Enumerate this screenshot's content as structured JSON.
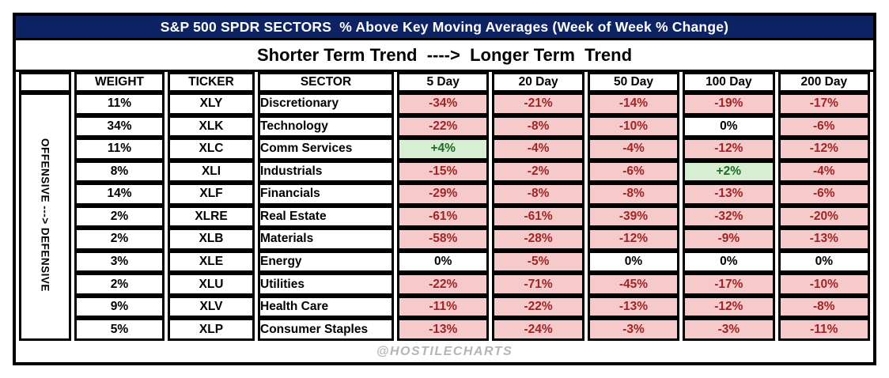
{
  "title": "S&P 500 SPDR SECTORS  % Above Key Moving Averages (Week of Week % Change)",
  "subtitle": "Shorter Term Trend  ---->  Longer Term  Trend",
  "side_label": "OFFENSIVE ---> DEFENSIVE",
  "watermark": "@HOSTILECHARTS",
  "colors": {
    "header_bg": "#0d2363",
    "header_text": "#ffffff",
    "border": "#000000",
    "negative_fill": "#f6caca",
    "negative_text": "#a12525",
    "positive_fill": "#d8eed3",
    "positive_text": "#1f6b26",
    "zero_fill": "#ffffff",
    "zero_text": "#000000",
    "watermark_text": "#b5b5b5"
  },
  "chart_data": {
    "type": "table",
    "columns": [
      "WEIGHT",
      "TICKER",
      "SECTOR",
      "5 Day",
      "20 Day",
      "50 Day",
      "100 Day",
      "200 Day"
    ],
    "rows": [
      {
        "weight": "11%",
        "ticker": "XLY",
        "sector": "Discretionary",
        "values": [
          "-34%",
          "-21%",
          "-14%",
          "-19%",
          "-17%"
        ],
        "states": [
          "neg",
          "neg",
          "neg",
          "neg",
          "neg"
        ]
      },
      {
        "weight": "34%",
        "ticker": "XLK",
        "sector": "Technology",
        "values": [
          "-22%",
          "-8%",
          "-10%",
          "0%",
          "-6%"
        ],
        "states": [
          "neg",
          "neg",
          "neg",
          "zero",
          "neg"
        ]
      },
      {
        "weight": "11%",
        "ticker": "XLC",
        "sector": "Comm Services",
        "values": [
          "+4%",
          "-4%",
          "-4%",
          "-12%",
          "-12%"
        ],
        "states": [
          "pos",
          "neg",
          "neg",
          "neg",
          "neg"
        ]
      },
      {
        "weight": "8%",
        "ticker": "XLI",
        "sector": "Industrials",
        "values": [
          "-15%",
          "-2%",
          "-6%",
          "+2%",
          "-4%"
        ],
        "states": [
          "neg",
          "neg",
          "neg",
          "pos",
          "neg"
        ]
      },
      {
        "weight": "14%",
        "ticker": "XLF",
        "sector": "Financials",
        "values": [
          "-29%",
          "-8%",
          "-8%",
          "-13%",
          "-6%"
        ],
        "states": [
          "neg",
          "neg",
          "neg",
          "neg",
          "neg"
        ]
      },
      {
        "weight": "2%",
        "ticker": "XLRE",
        "sector": "Real Estate",
        "values": [
          "-61%",
          "-61%",
          "-39%",
          "-32%",
          "-20%"
        ],
        "states": [
          "neg",
          "neg",
          "neg",
          "neg",
          "neg"
        ]
      },
      {
        "weight": "2%",
        "ticker": "XLB",
        "sector": "Materials",
        "values": [
          "-58%",
          "-28%",
          "-12%",
          "-9%",
          "-13%"
        ],
        "states": [
          "neg",
          "neg",
          "neg",
          "neg",
          "neg"
        ]
      },
      {
        "weight": "3%",
        "ticker": "XLE",
        "sector": "Energy",
        "values": [
          "0%",
          "-5%",
          "0%",
          "0%",
          "0%"
        ],
        "states": [
          "zero",
          "neg",
          "zero",
          "zero",
          "zero"
        ]
      },
      {
        "weight": "2%",
        "ticker": "XLU",
        "sector": "Utilities",
        "values": [
          "-22%",
          "-71%",
          "-45%",
          "-17%",
          "-10%"
        ],
        "states": [
          "neg",
          "neg",
          "neg",
          "neg",
          "neg"
        ]
      },
      {
        "weight": "9%",
        "ticker": "XLV",
        "sector": "Health Care",
        "values": [
          "-11%",
          "-22%",
          "-13%",
          "-12%",
          "-8%"
        ],
        "states": [
          "neg",
          "neg",
          "neg",
          "neg",
          "neg"
        ]
      },
      {
        "weight": "5%",
        "ticker": "XLP",
        "sector": "Consumer Staples",
        "values": [
          "-13%",
          "-24%",
          "-3%",
          "-3%",
          "-11%"
        ],
        "states": [
          "neg",
          "neg",
          "neg",
          "neg",
          "neg"
        ]
      }
    ]
  }
}
